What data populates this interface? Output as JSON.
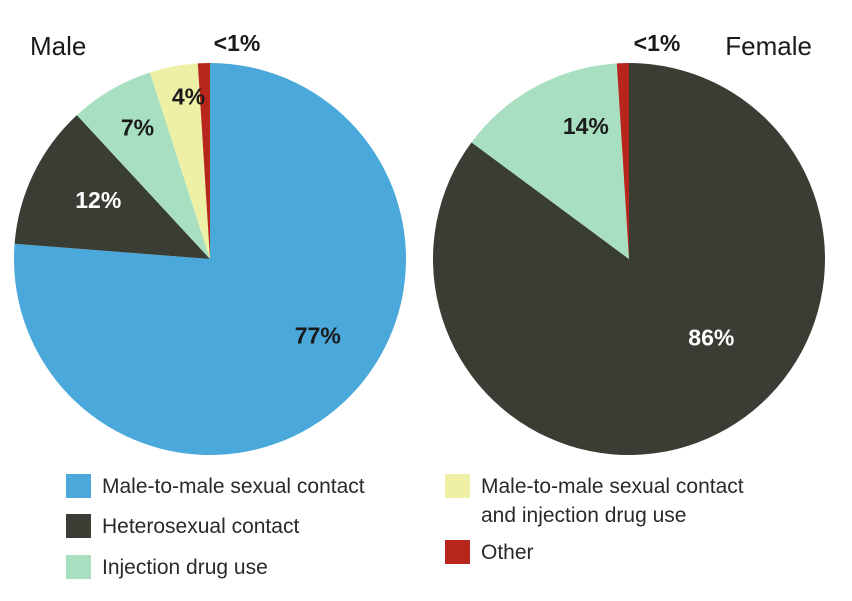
{
  "chart_data": [
    {
      "type": "pie",
      "title": "Male",
      "slices": [
        {
          "category": "Male-to-male sexual contact",
          "value": 77,
          "label": "77%"
        },
        {
          "category": "Heterosexual contact",
          "value": 12,
          "label": "12%"
        },
        {
          "category": "Injection drug use",
          "value": 7,
          "label": "7%"
        },
        {
          "category": "Male-to-male sexual contact and injection drug use",
          "value": 4,
          "label": "4%"
        },
        {
          "category": "Other",
          "value": 1,
          "label": "<1%"
        }
      ]
    },
    {
      "type": "pie",
      "title": "Female",
      "slices": [
        {
          "category": "Heterosexual contact",
          "value": 86,
          "label": "86%"
        },
        {
          "category": "Injection drug use",
          "value": 14,
          "label": "14%"
        },
        {
          "category": "Other",
          "value": 1,
          "label": "<1%"
        }
      ]
    }
  ],
  "legend": [
    {
      "key": "msm",
      "category": "Male-to-male sexual contact",
      "lines": [
        "Male-to-male sexual contact"
      ],
      "color": "#4aa8da"
    },
    {
      "key": "het",
      "category": "Heterosexual contact",
      "lines": [
        "Heterosexual contact"
      ],
      "color": "#3a3d34"
    },
    {
      "key": "idu",
      "category": "Injection drug use",
      "lines": [
        "Injection drug use"
      ],
      "color": "#a9dfc1"
    },
    {
      "key": "msmidu",
      "category": "Male-to-male sexual contact and injection drug use",
      "lines": [
        "Male-to-male sexual contact",
        "and injection drug use"
      ],
      "color": "#eef0a6"
    },
    {
      "key": "other",
      "category": "Other",
      "lines": [
        "Other"
      ],
      "color": "#b7261d"
    }
  ],
  "label_colors": {
    "Male-to-male sexual contact": "#1a1a1a",
    "Heterosexual contact": "#ffffff",
    "Injection drug use": "#1a1a1a",
    "Male-to-male sexual contact and injection drug use": "#1a1a1a",
    "Other": "#1a1a1a"
  }
}
